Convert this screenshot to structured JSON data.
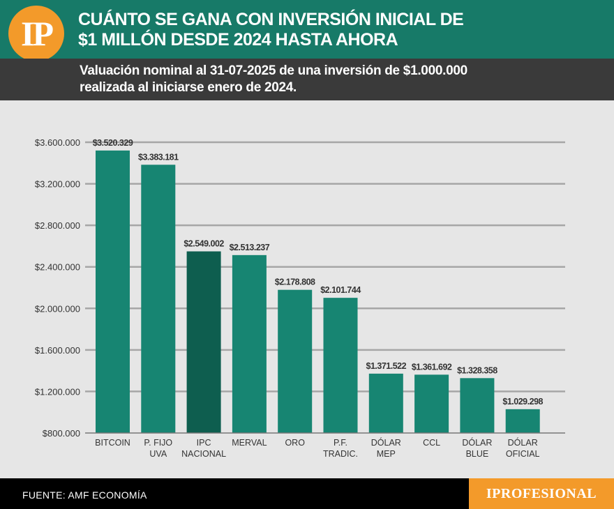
{
  "header": {
    "logo_text": "IP",
    "title_line1": "CUÁNTO SE GANA CON INVERSIÓN INICIAL DE",
    "title_line2": "$1 MILLÓN DESDE 2024 HASTA AHORA"
  },
  "subheader": {
    "line1": "Valuación nominal al 31-07-2025 de una inversión de $1.000.000",
    "line2": "realizada al iniciarse enero de 2024."
  },
  "footer": {
    "source": "FUENTE: AMF ECONOMÍA",
    "brand": "IPROFESIONAL"
  },
  "colors": {
    "header_bg": "#177a68",
    "subheader_bg": "#3a3a3a",
    "bar": "#178572",
    "bar_highlight": "#0e5e4f",
    "accent": "#f39a2a",
    "background": "#e6e6e6",
    "gridline": "#a6a6a6"
  },
  "chart_data": {
    "type": "bar",
    "title": "CUÁNTO SE GANA CON INVERSIÓN INICIAL DE $1 MILLÓN DESDE 2024 HASTA AHORA",
    "xlabel": "",
    "ylabel": "",
    "ylim": [
      800000,
      3600000
    ],
    "yticks": [
      800000,
      1200000,
      1600000,
      2000000,
      2400000,
      2800000,
      3200000,
      3600000
    ],
    "ytick_labels": [
      "$800.000",
      "$1.200.000",
      "$1.600.000",
      "$2.000.000",
      "$2.400.000",
      "$2.800.000",
      "$3.200.000",
      "$3.600.000"
    ],
    "grid": true,
    "categories": [
      [
        "BITCOIN"
      ],
      [
        "P. FIJO",
        "UVA"
      ],
      [
        "IPC",
        "NACIONAL"
      ],
      [
        "MERVAL"
      ],
      [
        "ORO"
      ],
      [
        "P.F.",
        "TRADIC."
      ],
      [
        "DÓLAR",
        "MEP"
      ],
      [
        "CCL"
      ],
      [
        "DÓLAR",
        "BLUE"
      ],
      [
        "DÓLAR",
        "OFICIAL"
      ]
    ],
    "values": [
      3520329,
      3383181,
      2549002,
      2513237,
      2178808,
      2101744,
      1371522,
      1361692,
      1328358,
      1029298
    ],
    "value_labels": [
      "$3.520.329",
      "$3.383.181",
      "$2.549.002",
      "$2.513.237",
      "$2.178.808",
      "$2.101.744",
      "$1.371.522",
      "$1.361.692",
      "$1.328.358",
      "$1.029.298"
    ],
    "highlight_index": 2
  }
}
